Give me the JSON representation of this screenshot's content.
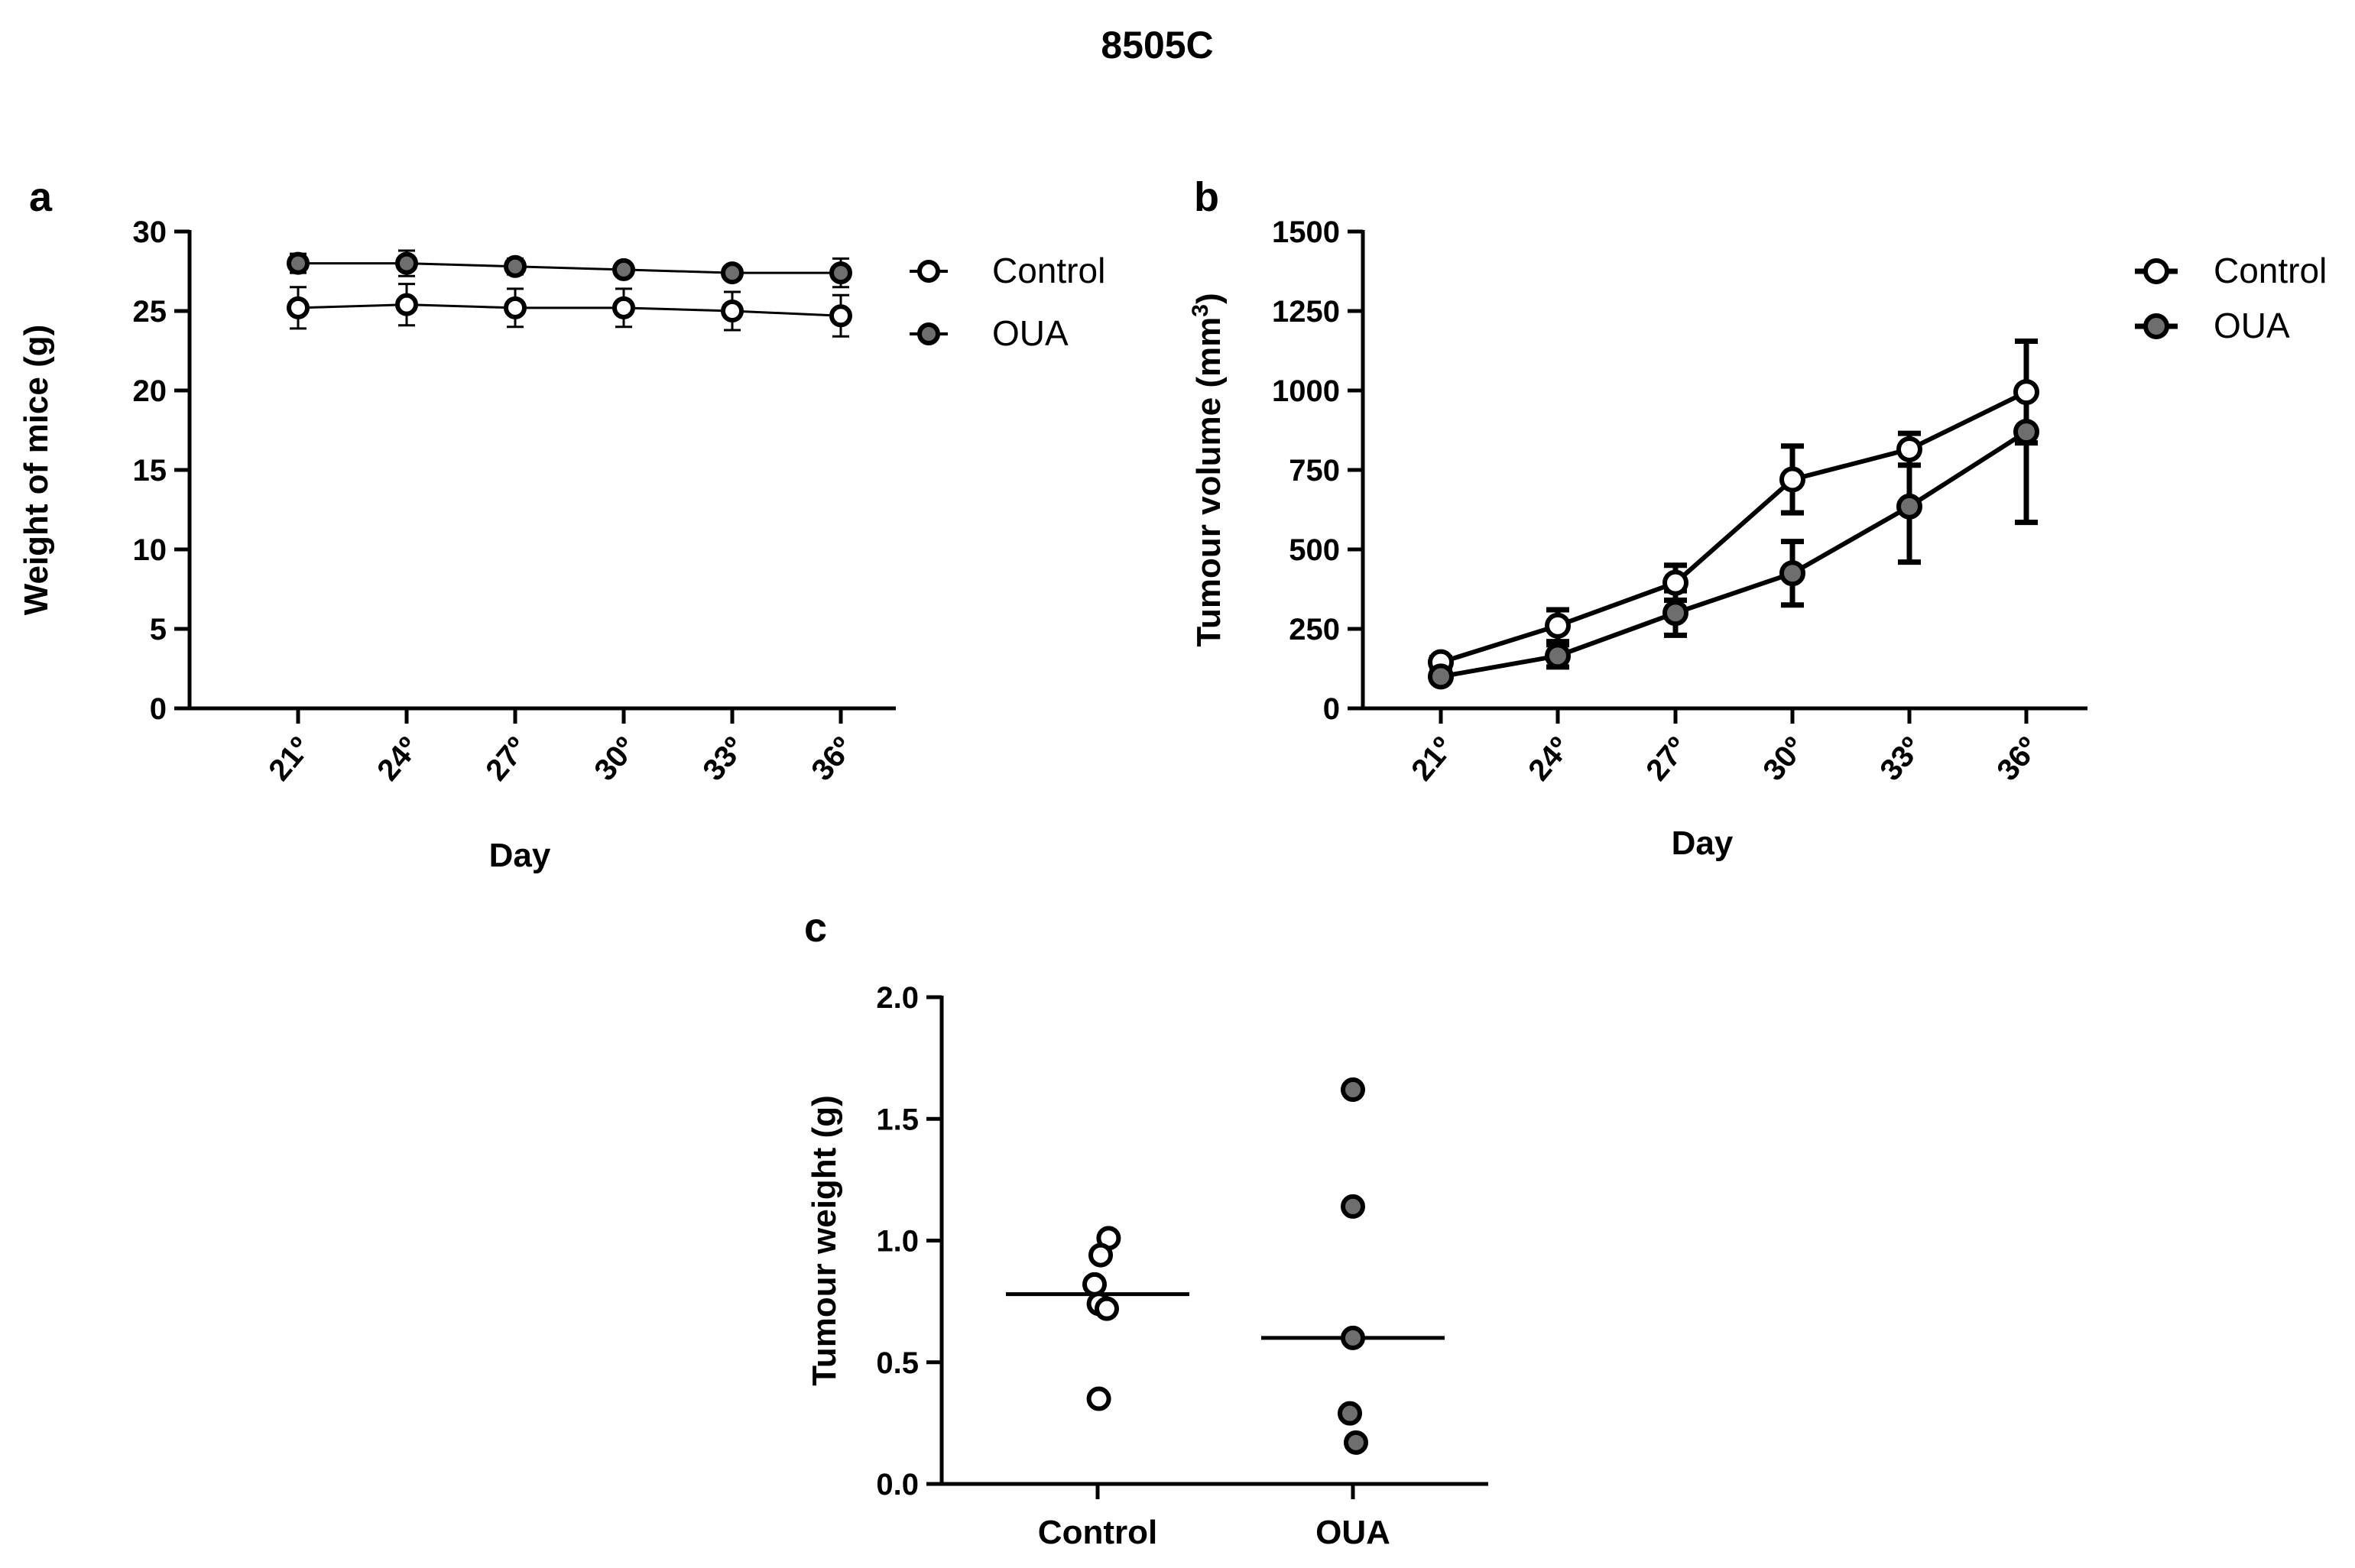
{
  "title": "8505C",
  "colors": {
    "axis": "#000000",
    "control_fill": "#ffffff",
    "oua_fill": "#6e6e6e",
    "line": "#000000"
  },
  "chart_data": [
    {
      "panel": "a",
      "type": "line",
      "xlabel": "Day",
      "ylabel": "Weight of mice (g)",
      "categories": [
        "21º",
        "24º",
        "27º",
        "30º",
        "33º",
        "36º"
      ],
      "ylim": [
        0,
        30
      ],
      "yticks": [
        0,
        5,
        10,
        15,
        20,
        25,
        30
      ],
      "legend": "right",
      "series": [
        {
          "name": "Control",
          "marker": "open-circle",
          "values": [
            25.2,
            25.4,
            25.2,
            25.2,
            25.0,
            24.7
          ],
          "errors": [
            1.3,
            1.3,
            1.2,
            1.2,
            1.2,
            1.3
          ]
        },
        {
          "name": "OUA",
          "marker": "filled-circle",
          "values": [
            28.0,
            28.0,
            27.8,
            27.6,
            27.4,
            27.4
          ],
          "errors": [
            0.6,
            0.8,
            0.5,
            0.4,
            0.4,
            0.9
          ]
        }
      ]
    },
    {
      "panel": "b",
      "type": "line",
      "xlabel": "Day",
      "ylabel": "Tumour volume (mm",
      "ylabel_sup": "3",
      "ylabel_end": ")",
      "categories": [
        "21º",
        "24º",
        "27º",
        "30º",
        "33º",
        "36º"
      ],
      "ylim": [
        0,
        1500
      ],
      "yticks": [
        0,
        250,
        500,
        750,
        1000,
        1250,
        1500
      ],
      "legend": "right",
      "series": [
        {
          "name": "Control",
          "marker": "open-circle",
          "values": [
            145,
            260,
            395,
            720,
            815,
            995
          ],
          "errors": [
            15,
            50,
            55,
            105,
            50,
            160
          ]
        },
        {
          "name": "OUA",
          "marker": "filled-circle",
          "values": [
            100,
            165,
            300,
            425,
            635,
            870
          ],
          "errors": [
            10,
            35,
            70,
            100,
            175,
            285
          ]
        }
      ]
    },
    {
      "panel": "c",
      "type": "scatter",
      "ylabel": "Tumour weight (g)",
      "categories": [
        "Control",
        "OUA"
      ],
      "ylim": [
        0,
        2.0
      ],
      "yticks": [
        "0.0",
        "0.5",
        "1.0",
        "1.5",
        "2.0"
      ],
      "series": [
        {
          "name": "Control",
          "marker": "open-circle",
          "values": [
            1.01,
            0.94,
            0.82,
            0.74,
            0.72,
            0.35
          ],
          "offsets": [
            0.18,
            0.05,
            -0.05,
            0.02,
            0.15,
            0.02
          ],
          "median": 0.78
        },
        {
          "name": "OUA",
          "marker": "filled-circle",
          "values": [
            1.62,
            1.14,
            0.6,
            0.29,
            0.17
          ],
          "offsets": [
            0.0,
            0.0,
            0.0,
            -0.05,
            0.05
          ],
          "median": 0.6
        }
      ]
    }
  ]
}
